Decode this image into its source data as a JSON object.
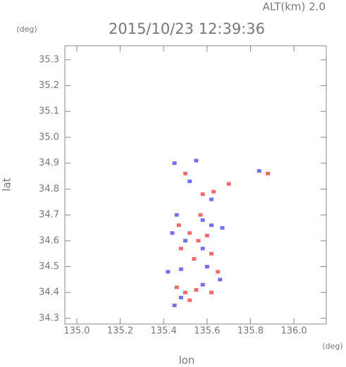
{
  "chart_data": {
    "type": "scatter",
    "title": "2015/10/23 12:39:36",
    "subtitle": "ALT(km) 2.0",
    "x_label": "lon",
    "y_label": "lat",
    "x_unit": "(deg)",
    "y_unit": "(deg)",
    "xlim": [
      134.945,
      136.149
    ],
    "ylim": [
      34.278,
      35.354
    ],
    "xticks": [
      {
        "value": 135,
        "label": "135.0"
      },
      135.2,
      135.4,
      135.6,
      135.8,
      {
        "value": 136,
        "label": "136.0"
      }
    ],
    "yticks": [
      34.3,
      34.4,
      34.5,
      34.6,
      34.7,
      34.8,
      34.9,
      {
        "value": 35,
        "label": "35.0"
      },
      35.1,
      35.2,
      35.3
    ],
    "series": [
      {
        "color": "#f06a6a",
        "x": [
          135.5,
          135.58,
          135.63,
          135.47,
          135.52,
          135.56,
          135.6,
          135.48,
          135.54,
          135.62,
          135.46,
          135.5,
          135.55,
          135.62,
          135.52,
          135.65,
          135.57,
          135.88,
          135.7
        ],
        "y": [
          34.86,
          34.78,
          34.79,
          34.66,
          34.63,
          34.6,
          34.62,
          34.57,
          34.53,
          34.55,
          34.42,
          34.4,
          34.41,
          34.4,
          34.37,
          34.48,
          34.7,
          34.86,
          34.82
        ]
      },
      {
        "color": "#7070f0",
        "x": [
          135.45,
          135.55,
          135.52,
          135.62,
          135.46,
          135.58,
          135.62,
          135.5,
          135.58,
          135.44,
          135.48,
          135.6,
          135.66,
          135.42,
          135.58,
          135.48,
          135.45,
          135.84,
          135.67
        ],
        "y": [
          34.9,
          34.91,
          34.83,
          34.76,
          34.7,
          34.68,
          34.66,
          34.6,
          34.57,
          34.63,
          34.49,
          34.5,
          34.45,
          34.48,
          34.43,
          34.38,
          34.35,
          34.87,
          34.65
        ]
      }
    ]
  }
}
